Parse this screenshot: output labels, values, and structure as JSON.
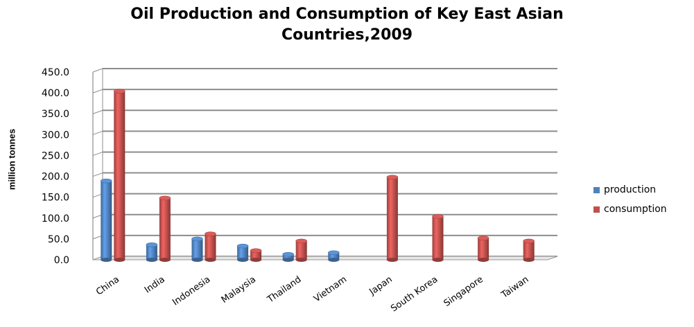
{
  "chart_data": {
    "type": "bar",
    "title": "Oil Production and Consumption  of Key East Asian\nCountries,2009",
    "xlabel": "",
    "ylabel": "million tonnes",
    "ylim": [
      0,
      450
    ],
    "yticks": [
      "0.0",
      "50.0",
      "100.0",
      "150.0",
      "200.0",
      "250.0",
      "300.0",
      "350.0",
      "400.0",
      "450.0"
    ],
    "categories": [
      "China",
      "India",
      "Indonesia",
      "Malaysia",
      "Thailand",
      "Vietnam",
      "Japan",
      "South Korea",
      "Singapore",
      "Taiwan"
    ],
    "series": [
      {
        "name": "production",
        "color": "#4F81BD",
        "values": [
          189,
          36,
          50,
          33,
          13,
          17,
          null,
          null,
          null,
          null
        ]
      },
      {
        "name": "consumption",
        "color": "#C0504D",
        "values": [
          404,
          148,
          62,
          22,
          45,
          null,
          198,
          104,
          52,
          45
        ]
      }
    ],
    "grid": true,
    "legend_position": "right"
  }
}
